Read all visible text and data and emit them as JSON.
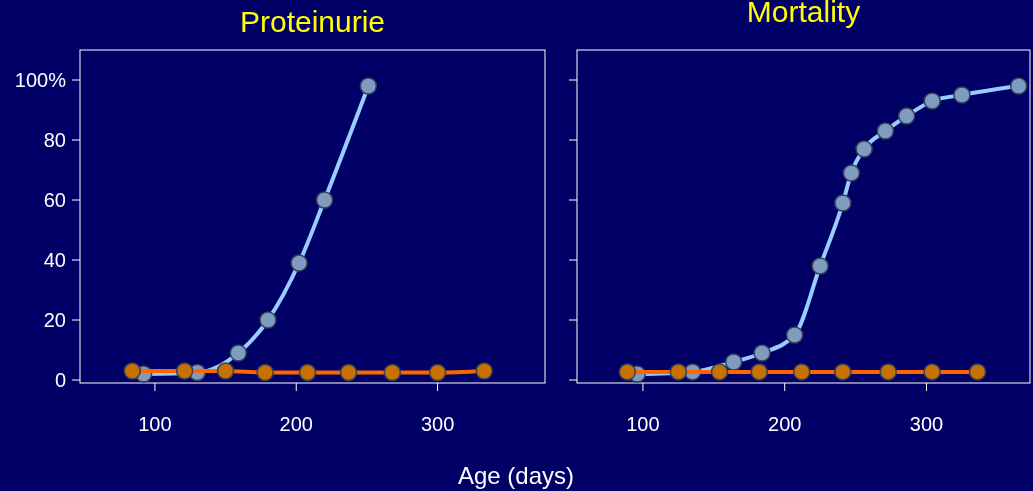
{
  "chart_data": [
    {
      "type": "line",
      "title": "Proteinurie",
      "xlabel": "Age (days)",
      "xlim": [
        47,
        376
      ],
      "xticks": [
        100,
        200,
        300
      ],
      "ylim": [
        -1,
        110
      ],
      "yticks": [
        0,
        20,
        40,
        60,
        80,
        {
          "value": 100,
          "label": "100%"
        }
      ],
      "marker": "circle",
      "series": [
        {
          "color": "#99ccff",
          "x": [
            92,
            130,
            159,
            180,
            202,
            220,
            251
          ],
          "values": [
            2,
            2.5,
            9,
            20,
            39,
            60,
            98
          ]
        },
        {
          "color": "#ff6600",
          "x": [
            84,
            121,
            150,
            178,
            208,
            237,
            268,
            300,
            333
          ],
          "values": [
            3,
            3,
            3,
            2.5,
            2.5,
            2.5,
            2.5,
            2.5,
            3
          ]
        }
      ]
    },
    {
      "type": "line",
      "title": "Mortality",
      "xlim": [
        53.5,
        373
      ],
      "xticks": [
        100,
        200,
        300
      ],
      "ylim": [
        -1,
        110
      ],
      "yticks": [
        0,
        20,
        40,
        60,
        80,
        100
      ],
      "tick_labels": "x",
      "marker": "circle",
      "series": [
        {
          "color": "#99ccff",
          "x": [
            96,
            135,
            164,
            184,
            207,
            225,
            241,
            247,
            256,
            271,
            286,
            304,
            325,
            365
          ],
          "values": [
            2,
            2.7,
            6,
            9,
            15,
            38,
            59,
            69,
            77,
            83,
            88,
            93,
            95,
            98
          ]
        },
        {
          "color": "#ff6600",
          "x": [
            89,
            125,
            154,
            182,
            212,
            241,
            273,
            304,
            336
          ],
          "values": [
            2.7,
            2.7,
            2.7,
            2.7,
            2.7,
            2.7,
            2.7,
            2.7,
            2.7
          ]
        }
      ]
    }
  ]
}
